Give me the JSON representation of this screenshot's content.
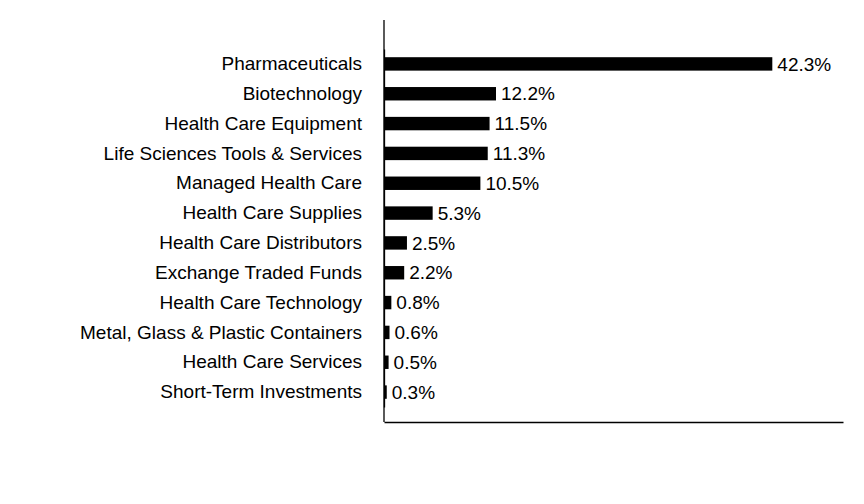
{
  "chart_data": {
    "type": "bar",
    "orientation": "horizontal",
    "categories": [
      "Pharmaceuticals",
      "Biotechnology",
      "Health Care Equipment",
      "Life Sciences Tools & Services",
      "Managed Health Care",
      "Health Care Supplies",
      "Health Care Distributors",
      "Exchange Traded Funds",
      "Health Care Technology",
      "Metal, Glass & Plastic Containers",
      "Health Care Services",
      "Short-Term Investments"
    ],
    "values": [
      42.3,
      12.2,
      11.5,
      11.3,
      10.5,
      5.3,
      2.5,
      2.2,
      0.8,
      0.6,
      0.5,
      0.3
    ],
    "value_labels": [
      "42.3%",
      "12.2%",
      "11.5%",
      "11.3%",
      "10.5%",
      "5.3%",
      "2.5%",
      "2.2%",
      "0.8%",
      "0.6%",
      "0.5%",
      "0.3%"
    ],
    "color": "#000000",
    "xlim": [
      0,
      50
    ],
    "grid": false,
    "data_labels": true,
    "tick_labels": "y"
  }
}
